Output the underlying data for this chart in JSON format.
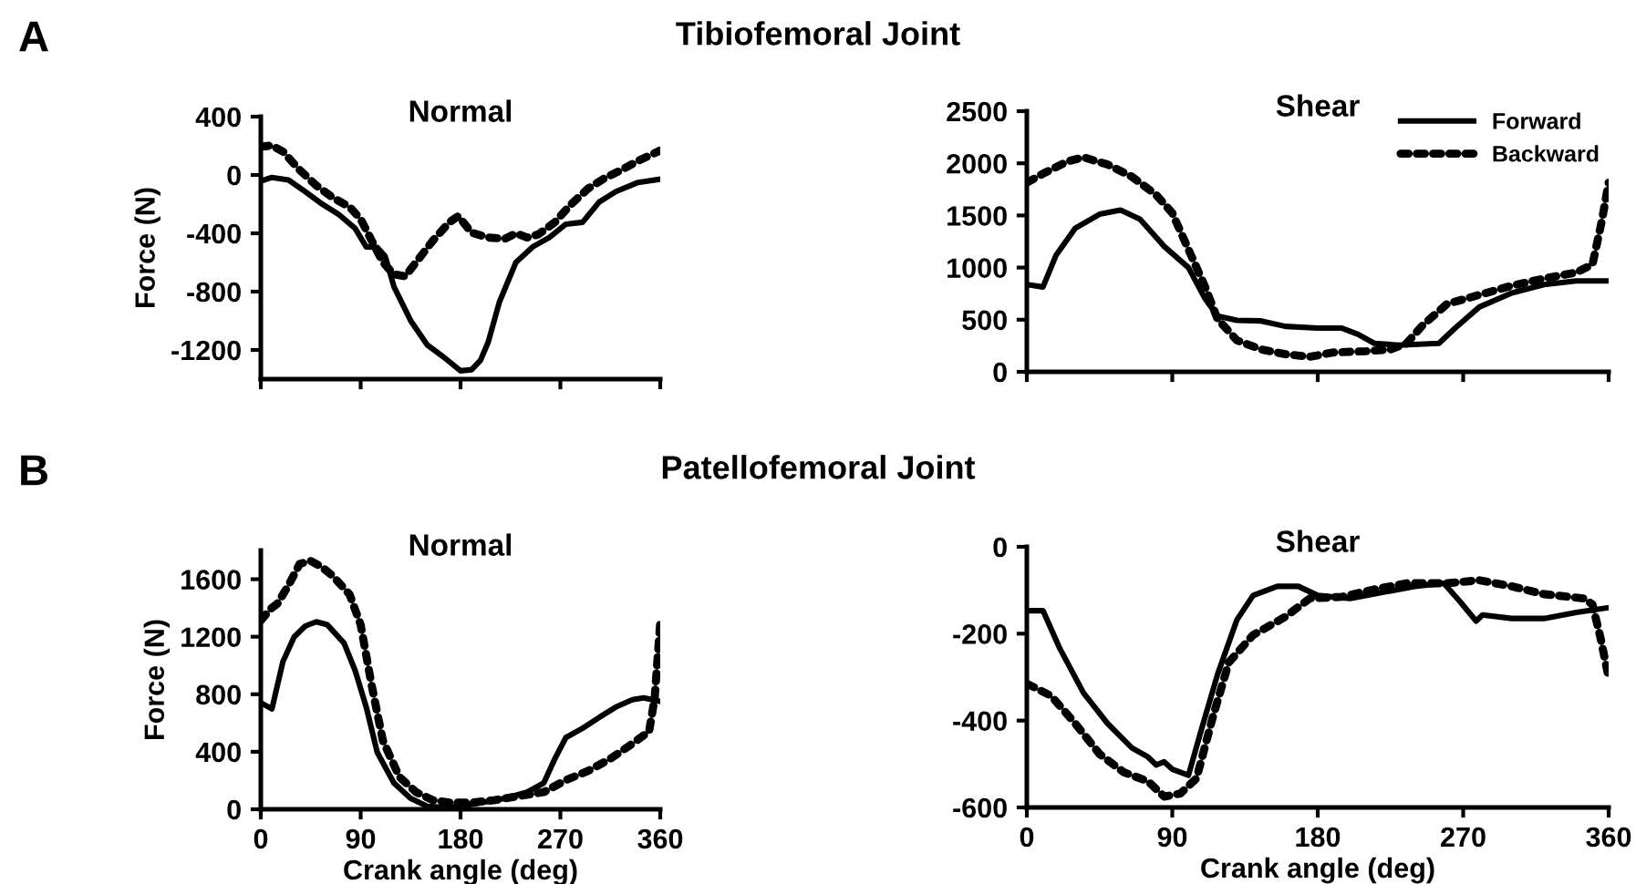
{
  "chart_data": [
    {
      "type": "line",
      "title": "Normal",
      "ylabel": "Force (N)",
      "annotations": [
        "A",
        "Tibiofemoral Joint"
      ],
      "xlim": [
        0,
        360
      ],
      "ylim": [
        -1400,
        400
      ],
      "yticks": [
        -1200,
        -800,
        -400,
        0,
        400
      ],
      "xticks": [
        {
          "value": 0,
          "label": null
        },
        {
          "value": 90,
          "label": null
        },
        {
          "value": 180,
          "label": null
        },
        {
          "value": 270,
          "label": null
        },
        {
          "value": 360,
          "label": null
        }
      ],
      "tick_labels": "y",
      "grid": false,
      "legend": false,
      "series": [
        {
          "color": "#000000",
          "line_style": "solid",
          "x": [
            0,
            10,
            25,
            40,
            55,
            70,
            85,
            95,
            105,
            112,
            120,
            135,
            150,
            165,
            180,
            190,
            198,
            205,
            215,
            230,
            245,
            260,
            275,
            290,
            305,
            320,
            340,
            360
          ],
          "values": [
            -42,
            -17,
            -34,
            -114,
            -198,
            -269,
            -366,
            -493,
            -497,
            -556,
            -766,
            -998,
            -1166,
            -1250,
            -1343,
            -1335,
            -1271,
            -1145,
            -872,
            -598,
            -493,
            -429,
            -337,
            -324,
            -185,
            -114,
            -51,
            -29
          ]
        },
        {
          "color": "#000000",
          "line_style": "dotted",
          "x": [
            0,
            10,
            20,
            35,
            50,
            65,
            80,
            90,
            100,
            110,
            120,
            130,
            140,
            155,
            170,
            178,
            190,
            205,
            220,
            230,
            240,
            250,
            265,
            280,
            295,
            310,
            325,
            340,
            360
          ],
          "values": [
            194,
            202,
            160,
            34,
            -72,
            -156,
            -219,
            -303,
            -451,
            -598,
            -682,
            -695,
            -598,
            -451,
            -324,
            -282,
            -396,
            -429,
            -438,
            -400,
            -429,
            -408,
            -324,
            -198,
            -93,
            -21,
            34,
            97,
            168
          ]
        }
      ]
    },
    {
      "type": "line",
      "title": "Shear",
      "xlim": [
        0,
        360
      ],
      "ylim": [
        0,
        2500
      ],
      "yticks": [
        0,
        500,
        1000,
        1500,
        2000,
        2500
      ],
      "xticks": [
        {
          "value": 0,
          "label": null
        },
        {
          "value": 90,
          "label": null
        },
        {
          "value": 180,
          "label": null
        },
        {
          "value": 270,
          "label": null
        },
        {
          "value": 360,
          "label": null
        }
      ],
      "tick_labels": "y",
      "grid": false,
      "legend": "top right",
      "series": [
        {
          "name": "Forward",
          "color": "#000000",
          "line_style": "solid",
          "x": [
            0,
            10,
            18,
            30,
            45,
            58,
            70,
            85,
            100,
            110,
            118,
            130,
            145,
            160,
            180,
            195,
            205,
            215,
            230,
            255,
            265,
            280,
            300,
            320,
            340,
            360
          ],
          "values": [
            837,
            814,
            1116,
            1378,
            1512,
            1552,
            1465,
            1203,
            1000,
            709,
            535,
            494,
            488,
            436,
            419,
            419,
            360,
            273,
            256,
            273,
            419,
            622,
            756,
            837,
            872,
            872
          ]
        },
        {
          "name": "Backward",
          "color": "#000000",
          "line_style": "dotted",
          "x": [
            0,
            10,
            25,
            35,
            50,
            65,
            80,
            90,
            100,
            110,
            118,
            130,
            145,
            160,
            175,
            190,
            210,
            225,
            235,
            245,
            260,
            280,
            300,
            320,
            340,
            350,
            356,
            360
          ],
          "values": [
            1814,
            1901,
            2017,
            2058,
            1988,
            1872,
            1698,
            1523,
            1174,
            826,
            506,
            302,
            215,
            169,
            145,
            186,
            198,
            215,
            273,
            448,
            651,
            738,
            826,
            895,
            953,
            1029,
            1465,
            1814
          ]
        }
      ]
    },
    {
      "type": "line",
      "title": "Normal",
      "xlabel": "Crank angle (deg)",
      "ylabel": "Force (N)",
      "annotations": [
        "B",
        "Patellofemoral Joint"
      ],
      "xlim": [
        0,
        360
      ],
      "ylim": [
        0,
        1800
      ],
      "yticks": [
        0,
        400,
        800,
        1200,
        1600
      ],
      "xticks": [
        0,
        90,
        180,
        270,
        360
      ],
      "grid": false,
      "legend": false,
      "series": [
        {
          "color": "#000000",
          "line_style": "solid",
          "x": [
            0,
            10,
            20,
            30,
            40,
            50,
            60,
            75,
            85,
            95,
            105,
            120,
            135,
            150,
            165,
            180,
            200,
            220,
            240,
            255,
            265,
            275,
            290,
            305,
            320,
            335,
            345,
            360
          ],
          "values": [
            741,
            698,
            1029,
            1198,
            1274,
            1304,
            1283,
            1156,
            965,
            711,
            394,
            182,
            76,
            21,
            13,
            21,
            47,
            76,
            119,
            182,
            351,
            499,
            563,
            639,
            711,
            762,
            775,
            750
          ]
        },
        {
          "color": "#000000",
          "line_style": "dotted",
          "x": [
            0,
            8,
            15,
            25,
            35,
            45,
            55,
            65,
            80,
            90,
            100,
            110,
            125,
            140,
            155,
            170,
            190,
            210,
            230,
            255,
            275,
            295,
            315,
            335,
            350,
            355,
            360
          ],
          "values": [
            1312,
            1388,
            1431,
            1558,
            1706,
            1727,
            1685,
            1621,
            1494,
            1283,
            859,
            478,
            224,
            119,
            63,
            47,
            47,
            63,
            89,
            119,
            203,
            267,
            351,
            457,
            542,
            775,
            1300
          ]
        }
      ]
    },
    {
      "type": "line",
      "title": "Shear",
      "xlabel": "Crank angle (deg)",
      "xlim": [
        0,
        360
      ],
      "ylim": [
        -600,
        0
      ],
      "yticks": [
        -600,
        -400,
        -200,
        0
      ],
      "xticks": [
        0,
        90,
        180,
        270,
        360
      ],
      "grid": false,
      "legend": false,
      "series": [
        {
          "color": "#000000",
          "line_style": "solid",
          "x": [
            0,
            10,
            20,
            35,
            50,
            65,
            75,
            80,
            85,
            90,
            100,
            108,
            118,
            130,
            140,
            155,
            168,
            180,
            200,
            220,
            240,
            258,
            268,
            278,
            282,
            300,
            320,
            340,
            360
          ],
          "values": [
            -147,
            -147,
            -231,
            -336,
            -407,
            -463,
            -484,
            -502,
            -495,
            -512,
            -526,
            -421,
            -294,
            -168,
            -112,
            -91,
            -91,
            -112,
            -119,
            -105,
            -91,
            -84,
            -126,
            -171,
            -157,
            -165,
            -165,
            -151,
            -140
          ]
        },
        {
          "color": "#000000",
          "line_style": "dotted",
          "x": [
            0,
            15,
            30,
            45,
            60,
            75,
            85,
            95,
            105,
            115,
            125,
            140,
            160,
            175,
            195,
            215,
            235,
            260,
            280,
            300,
            320,
            345,
            350,
            355,
            360
          ],
          "values": [
            -315,
            -343,
            -407,
            -477,
            -519,
            -540,
            -575,
            -568,
            -533,
            -393,
            -266,
            -203,
            -161,
            -119,
            -115,
            -98,
            -84,
            -84,
            -77,
            -91,
            -109,
            -119,
            -133,
            -210,
            -301
          ]
        }
      ]
    }
  ]
}
